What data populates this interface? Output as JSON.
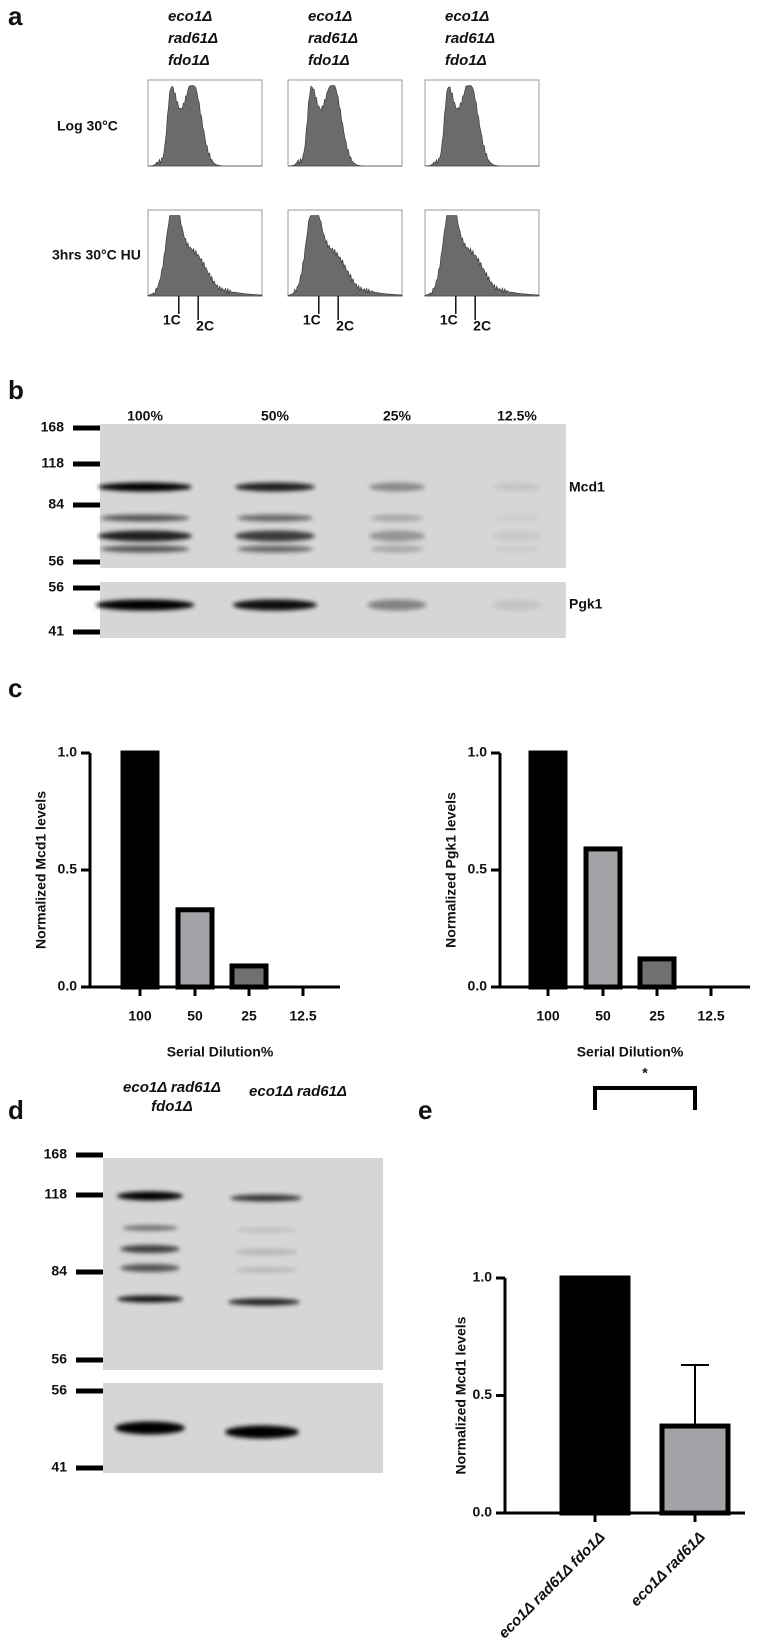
{
  "panel_labels": [
    "a",
    "b",
    "c",
    "d",
    "e"
  ],
  "panel_a": {
    "columns": [
      [
        "eco1Δ",
        "rad61Δ",
        "fdo1Δ"
      ],
      [
        "eco1Δ",
        "rad61Δ",
        "fdo1Δ"
      ],
      [
        "eco1Δ",
        "rad61Δ",
        "fdo1Δ"
      ]
    ],
    "rows": [
      "Log 30°C",
      "3hrs 30°C HU"
    ],
    "ploidy_markers": [
      [
        "1C",
        "2C"
      ],
      [
        "1C",
        "2C"
      ],
      [
        "1C",
        "2C"
      ]
    ]
  },
  "panel_b": {
    "lanes": [
      "100%",
      "50%",
      "25%",
      "12.5%"
    ],
    "markers_top": [
      168,
      118,
      84,
      56
    ],
    "markers_bottom": [
      56,
      41
    ],
    "proteins": [
      "Mcd1",
      "Pgk1"
    ]
  },
  "panel_d": {
    "lanes": [
      [
        "eco1Δ rad61Δ",
        "fdo1Δ"
      ],
      [
        "eco1Δ rad61Δ"
      ]
    ],
    "markers_top": [
      168,
      118,
      84,
      56
    ],
    "markers_bottom": [
      56,
      41
    ]
  },
  "chart_data": [
    {
      "type": "bar",
      "ylabel": "Normalized Mcd1 levels",
      "xlabel": "Serial Dilution%",
      "categories": [
        "100",
        "50",
        "25",
        "12.5"
      ],
      "values": [
        1.0,
        0.33,
        0.09,
        0
      ],
      "colors": [
        "#000000",
        "#a3a3a7",
        "#707070",
        "#707070"
      ],
      "ylim": [
        0,
        1
      ],
      "yticks": [
        {
          "value": 0,
          "label": "0.0"
        },
        {
          "value": 0.5,
          "label": "0.5"
        },
        {
          "value": 1,
          "label": "1.0"
        }
      ]
    },
    {
      "type": "bar",
      "ylabel": "Normalized Pgk1 levels",
      "xlabel": "Serial Dilution%",
      "categories": [
        "100",
        "50",
        "25",
        "12.5"
      ],
      "values": [
        1.0,
        0.59,
        0.12,
        0
      ],
      "colors": [
        "#000000",
        "#a3a3a7",
        "#707070",
        "#707070"
      ],
      "ylim": [
        0,
        1
      ],
      "yticks": [
        {
          "value": 0,
          "label": "0.0"
        },
        {
          "value": 0.5,
          "label": "0.5"
        },
        {
          "value": 1,
          "label": "1.0"
        }
      ]
    },
    {
      "type": "bar",
      "ylabel": "Normalized Mcd1 levels",
      "categories": [
        "eco1Δ rad61Δ fdo1Δ",
        "eco1Δ rad61Δ"
      ],
      "values": [
        1.0,
        0.37
      ],
      "errors": [
        null,
        0.26
      ],
      "colors": [
        "#000000",
        "#a3a3a7"
      ],
      "annotation": "*",
      "ylim": [
        0,
        1
      ],
      "yticks": [
        {
          "value": 0,
          "label": "0.0"
        },
        {
          "value": 0.5,
          "label": "0.5"
        },
        {
          "value": 1,
          "label": "1.0"
        }
      ]
    }
  ]
}
